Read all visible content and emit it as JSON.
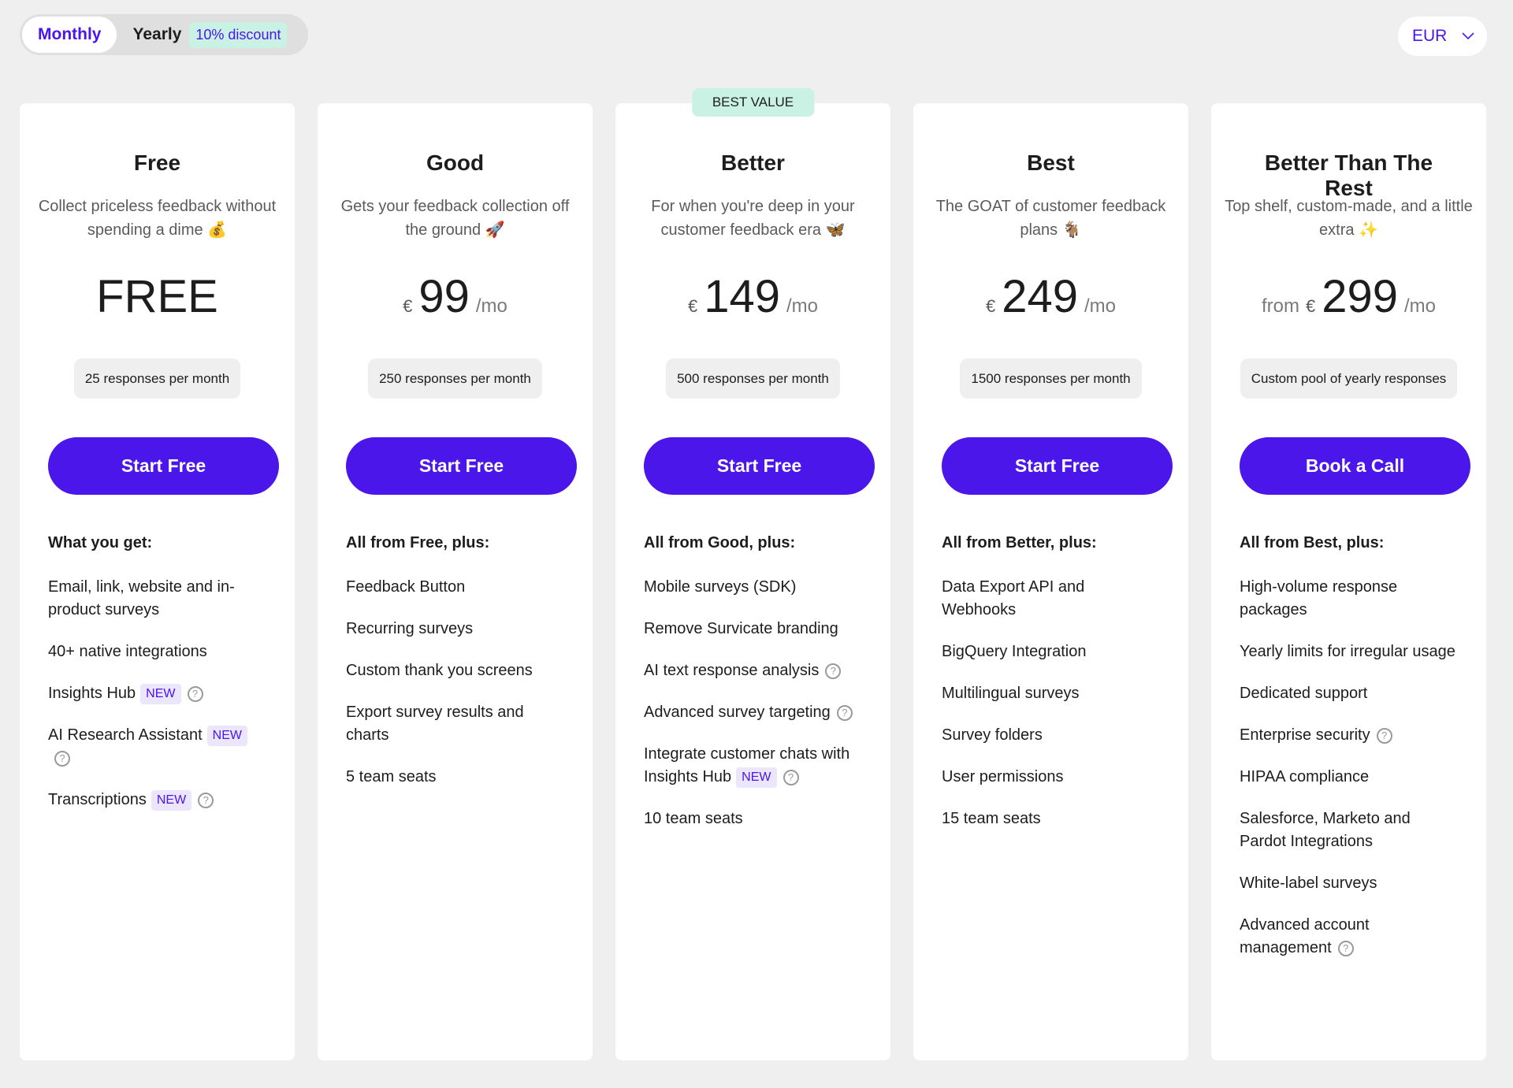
{
  "billing_toggle": {
    "monthly": "Monthly",
    "yearly": "Yearly",
    "discount": "10% discount",
    "selected": "Monthly"
  },
  "currency": {
    "value": "EUR"
  },
  "colors": {
    "accent": "#4b16ea",
    "badge_bg": "#c9f2e5",
    "new_bg": "#ece6fd"
  },
  "plans": [
    {
      "title": "Free",
      "desc": "Collect priceless feedback without spending a dime 💰",
      "price_free": "FREE",
      "responses": "25 responses per month",
      "cta": "Start Free",
      "features_heading": "What you get:",
      "features": [
        {
          "text": "Email, link, website and in-product surveys"
        },
        {
          "text": "40+ native integrations"
        },
        {
          "text": "Insights Hub",
          "badge": "NEW",
          "help": true
        },
        {
          "text": "AI Research Assistant",
          "badge": "NEW",
          "help": true
        },
        {
          "text": "Transcriptions",
          "badge": "NEW",
          "help": true
        }
      ]
    },
    {
      "title": "Good",
      "desc": "Gets your feedback collection off the ground 🚀",
      "currency_symbol": "€",
      "amount": "99",
      "period": "/mo",
      "responses": "250 responses per month",
      "cta": "Start Free",
      "features_heading": "All from Free, plus:",
      "features": [
        {
          "text": "Feedback Button"
        },
        {
          "text": "Recurring surveys"
        },
        {
          "text": "Custom thank you screens"
        },
        {
          "text": "Export survey results and charts"
        },
        {
          "text": "5 team seats"
        }
      ]
    },
    {
      "badge": "BEST VALUE",
      "title": "Better",
      "desc": "For when you're deep in your customer feedback era 🦋",
      "currency_symbol": "€",
      "amount": "149",
      "period": "/mo",
      "responses": "500 responses per month",
      "cta": "Start Free",
      "features_heading": "All from Good, plus:",
      "features": [
        {
          "text": "Mobile surveys (SDK)"
        },
        {
          "text": "Remove Survicate branding"
        },
        {
          "text": "AI text response analysis",
          "help": true
        },
        {
          "text": "Advanced survey targeting",
          "help": true
        },
        {
          "text": "Integrate customer chats with Insights Hub",
          "badge": "NEW",
          "help": true
        },
        {
          "text": "10 team seats"
        }
      ]
    },
    {
      "title": "Best",
      "desc": "The GOAT of customer feedback plans 🐐",
      "currency_symbol": "€",
      "amount": "249",
      "period": "/mo",
      "responses": "1500 responses per month",
      "cta": "Start Free",
      "features_heading": "All from Better, plus:",
      "features": [
        {
          "text": "Data Export API and Webhooks"
        },
        {
          "text": "BigQuery Integration"
        },
        {
          "text": "Multilingual surveys"
        },
        {
          "text": "Survey folders"
        },
        {
          "text": "User permissions"
        },
        {
          "text": "15 team seats"
        }
      ]
    },
    {
      "title": "Better Than The Rest",
      "desc": "Top shelf, custom-made, and a little extra ✨",
      "prefix": "from",
      "currency_symbol": "€",
      "amount": "299",
      "period": "/mo",
      "responses": "Custom pool of yearly responses",
      "cta": "Book a Call",
      "features_heading": "All from Best, plus:",
      "features": [
        {
          "text": "High-volume response packages"
        },
        {
          "text": "Yearly limits for irregular usage"
        },
        {
          "text": "Dedicated support"
        },
        {
          "text": "Enterprise security",
          "help": true
        },
        {
          "text": "HIPAA compliance"
        },
        {
          "text": "Salesforce, Marketo and Pardot Integrations"
        },
        {
          "text": "White-label surveys"
        },
        {
          "text": "Advanced account management",
          "help": true
        }
      ]
    }
  ]
}
